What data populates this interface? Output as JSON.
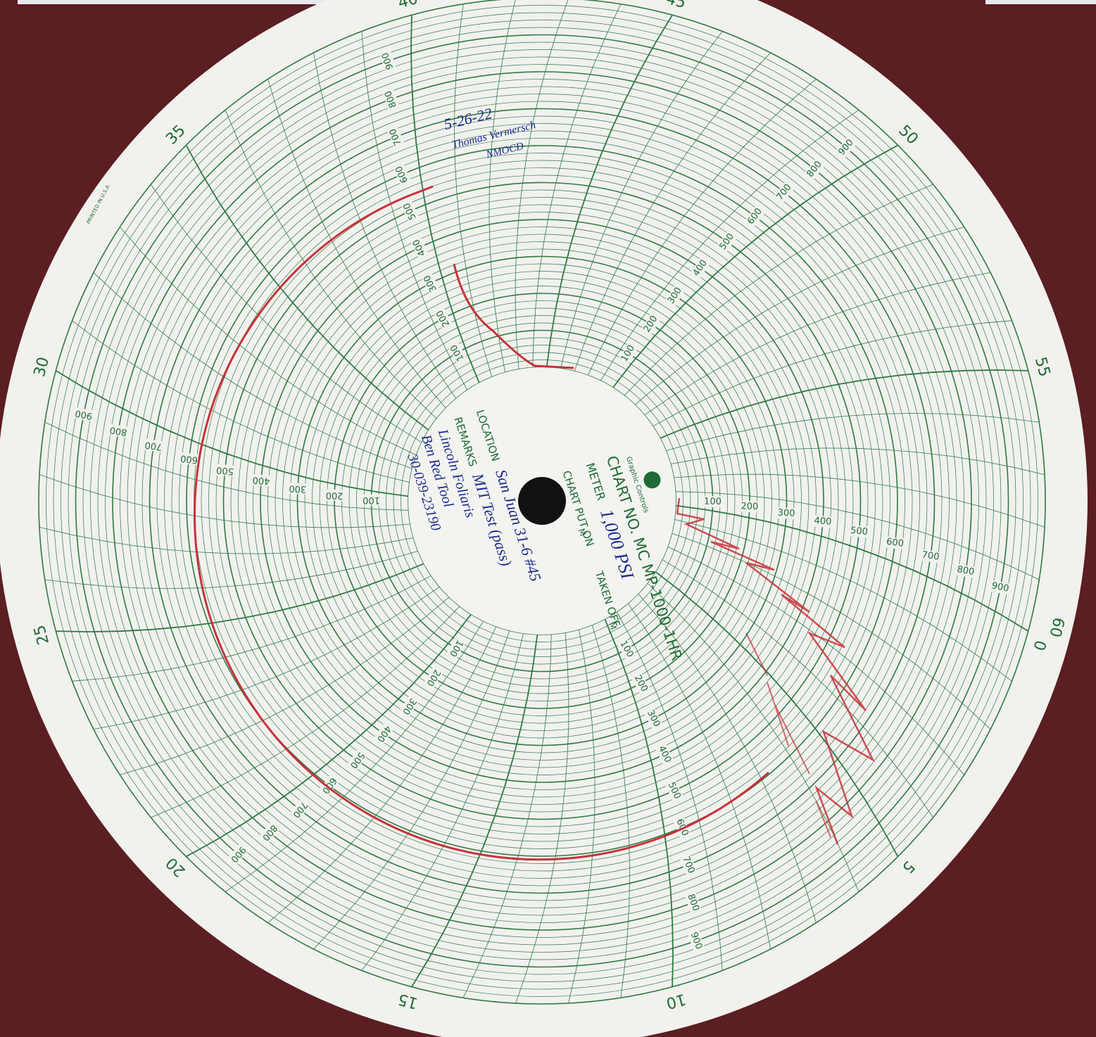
{
  "chart_paper": {
    "minute_labels": [
      "0",
      "5",
      "10",
      "15",
      "20",
      "25",
      "30",
      "35",
      "40",
      "45",
      "50",
      "55",
      "60"
    ],
    "pressure_labels": [
      "100",
      "200",
      "300",
      "400",
      "500",
      "600",
      "700",
      "800",
      "900"
    ],
    "chart_no": "CHART NO. MC MP-1000-1HR",
    "brand": "Graphic Controls",
    "meter_field": "METER",
    "put_on_field": "CHART PUT ON",
    "taken_off_field": "TAKEN OFF",
    "location_field": "LOCATION",
    "remarks_field": "REMARKS",
    "meridian": "M",
    "printed_in": "PRINTED IN U.S.A."
  },
  "handwriting": {
    "date": "5-26-22",
    "witness": "Thomas Vermersch",
    "agency": "NMOCD",
    "meter": "1,000 PSI",
    "location": "San Juan 31-6 #45",
    "remarks": [
      "MIT Test (pass)",
      "Lincoln Foliaris",
      "Ben Red Tool",
      "30-039-23190"
    ]
  }
}
